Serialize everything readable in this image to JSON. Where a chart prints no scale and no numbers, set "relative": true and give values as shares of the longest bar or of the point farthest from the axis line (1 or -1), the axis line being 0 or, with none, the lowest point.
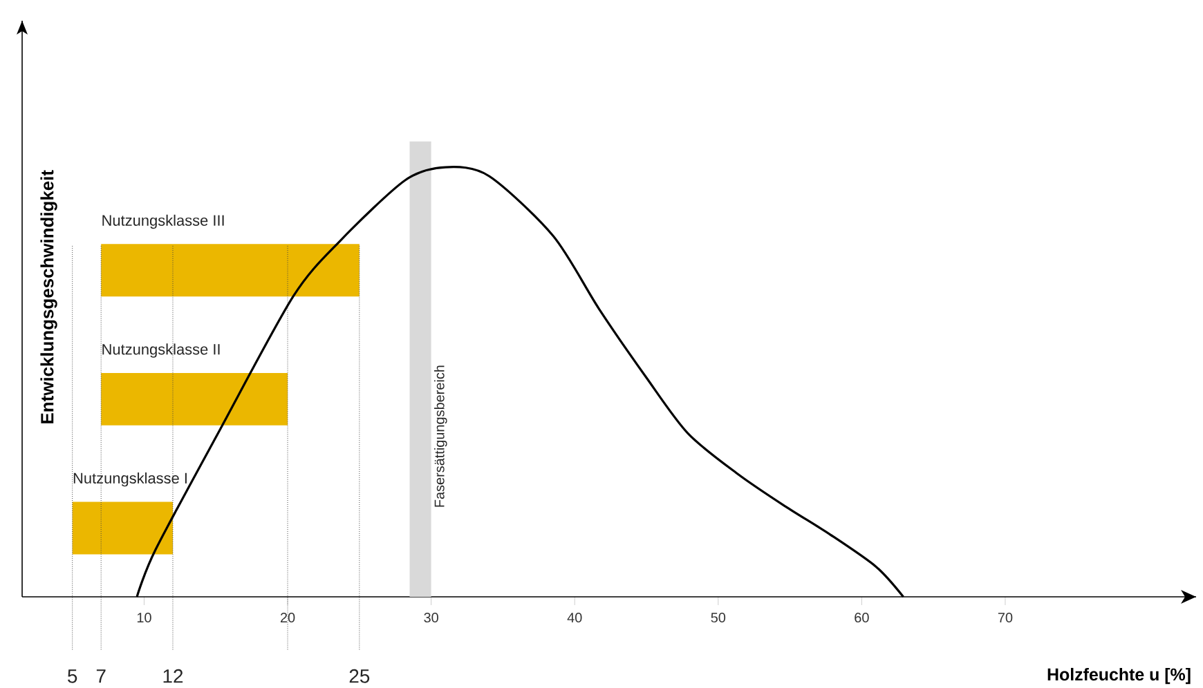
{
  "chart_data": {
    "type": "line",
    "xlabel": "Holzfeuchte u [%]",
    "ylabel": "Entwicklungsgeschwindigkeit",
    "relative": true,
    "xlim": [
      1.5,
      83.3
    ],
    "xticks": [
      10,
      20,
      30,
      40,
      50,
      60,
      70
    ],
    "series": [
      {
        "color": "#000000",
        "x": [
          9.5,
          10.8,
          15.3,
          20.4,
          23.7,
          28.2,
          31.0,
          34.0,
          38.5,
          41.7,
          45.0,
          47.9,
          51.4,
          54.7,
          57.8,
          61.0,
          62.9
        ],
        "values": [
          0,
          0.11,
          0.39,
          0.7,
          0.83,
          0.97,
          1.0,
          0.98,
          0.84,
          0.67,
          0.51,
          0.38,
          0.285,
          0.21,
          0.145,
          0.07,
          0
        ]
      }
    ],
    "bands": [
      {
        "axis": "x",
        "from": 5,
        "to": 12,
        "label": "Nutzungsklasse I",
        "color": "#ebb700"
      },
      {
        "axis": "x",
        "from": 7,
        "to": 20,
        "label": "Nutzungsklasse II",
        "color": "#ebb700"
      },
      {
        "axis": "x",
        "from": 7,
        "to": 25,
        "label": "Nutzungsklasse III",
        "color": "#ebb700"
      },
      {
        "axis": "x",
        "from": 28.5,
        "to": 30,
        "label": "Fasersättigungsbereich",
        "color": "#d9d9d9"
      }
    ],
    "ref_lines": [
      {
        "axis": "x",
        "value": 5,
        "label": "5",
        "color": "#444444",
        "line_style": "dotted"
      },
      {
        "axis": "x",
        "value": 7,
        "label": "7",
        "color": "#444444",
        "line_style": "dotted"
      },
      {
        "axis": "x",
        "value": 12,
        "label": "12",
        "color": "#444444",
        "line_style": "dotted"
      },
      {
        "axis": "x",
        "value": 20,
        "label": null,
        "color": "#444444",
        "line_style": "dotted"
      },
      {
        "axis": "x",
        "value": 25,
        "label": "25",
        "color": "#444444",
        "line_style": "dotted"
      }
    ]
  }
}
